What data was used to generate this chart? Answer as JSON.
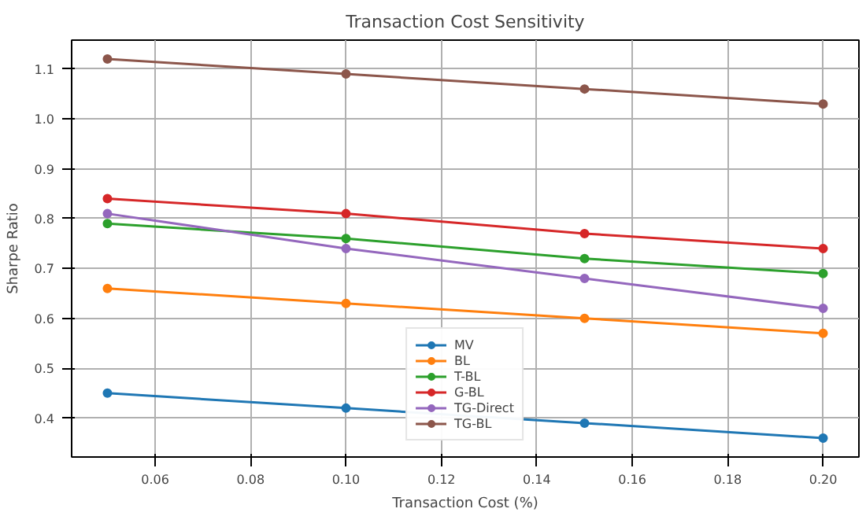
{
  "chart_data": {
    "type": "line",
    "title": "Transaction Cost Sensitivity",
    "xlabel": "Transaction Cost (%)",
    "ylabel": "Sharpe Ratio",
    "x": [
      0.05,
      0.1,
      0.15,
      0.2
    ],
    "series": [
      {
        "name": "MV",
        "color": "#1f77b4",
        "values": [
          0.45,
          0.42,
          0.39,
          0.36
        ]
      },
      {
        "name": "BL",
        "color": "#ff7f0e",
        "values": [
          0.66,
          0.63,
          0.6,
          0.57
        ]
      },
      {
        "name": "T-BL",
        "color": "#2ca02c",
        "values": [
          0.79,
          0.76,
          0.72,
          0.69
        ]
      },
      {
        "name": "G-BL",
        "color": "#d62728",
        "values": [
          0.84,
          0.81,
          0.77,
          0.74
        ]
      },
      {
        "name": "TG-Direct",
        "color": "#9467bd",
        "values": [
          0.81,
          0.74,
          0.68,
          0.62
        ]
      },
      {
        "name": "TG-BL",
        "color": "#8c564b",
        "values": [
          1.12,
          1.09,
          1.06,
          1.03
        ]
      }
    ],
    "xlim": [
      0.0425,
      0.2075
    ],
    "ylim": [
      0.322,
      1.158
    ],
    "xticks": [
      {
        "value": 0.06,
        "label": "0.06"
      },
      {
        "value": 0.08,
        "label": "0.08"
      },
      {
        "value": 0.1,
        "label": "0.10"
      },
      {
        "value": 0.12,
        "label": "0.12"
      },
      {
        "value": 0.14,
        "label": "0.14"
      },
      {
        "value": 0.16,
        "label": "0.16"
      },
      {
        "value": 0.18,
        "label": "0.18"
      },
      {
        "value": 0.2,
        "label": "0.20"
      }
    ],
    "yticks": [
      0.4,
      0.5,
      0.6,
      0.7,
      0.8,
      0.9,
      {
        "value": 1.0,
        "label": "1.0"
      },
      1.1
    ],
    "grid": true,
    "legend": "bottom",
    "marker": "circle",
    "line_style": "solid"
  }
}
